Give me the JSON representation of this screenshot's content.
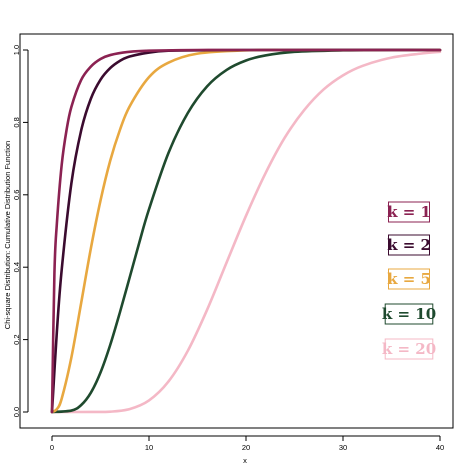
{
  "chart_data": {
    "type": "line",
    "xlabel": "x",
    "ylabel": "Chi-square Distribution: Cumulative Distribution Function",
    "xlim": [
      0,
      40
    ],
    "ylim": [
      0,
      1
    ],
    "x_ticks": [
      "0",
      "10",
      "20",
      "30",
      "40"
    ],
    "y_ticks": [
      "0.0",
      "0.2",
      "0.4",
      "0.6",
      "0.8",
      "1.0"
    ],
    "legend_placement": "right",
    "grid": false,
    "series": [
      {
        "name": "k = 1",
        "color": "#8b2252",
        "x": [
          0,
          0.25,
          0.5,
          1,
          1.5,
          2,
          3,
          4,
          5,
          6,
          8,
          10,
          15,
          20
        ],
        "y": [
          0,
          0.383,
          0.52,
          0.683,
          0.779,
          0.843,
          0.917,
          0.954,
          0.975,
          0.986,
          0.995,
          0.998,
          1.0,
          1.0
        ]
      },
      {
        "name": "k = 2",
        "color": "#3b0b2f",
        "x": [
          0,
          0.5,
          1,
          2,
          3,
          4,
          5,
          6,
          7,
          8,
          10,
          12,
          15,
          20
        ],
        "y": [
          0,
          0.221,
          0.393,
          0.632,
          0.777,
          0.865,
          0.918,
          0.95,
          0.97,
          0.982,
          0.993,
          0.998,
          0.999,
          1.0
        ]
      },
      {
        "name": "k = 5",
        "color": "#e8a840",
        "x": [
          0,
          0.5,
          1,
          2,
          3,
          4,
          5,
          6,
          7,
          8,
          10,
          12,
          15,
          20,
          25,
          30
        ],
        "y": [
          0,
          0.008,
          0.037,
          0.151,
          0.3,
          0.451,
          0.584,
          0.694,
          0.779,
          0.844,
          0.925,
          0.965,
          0.99,
          0.999,
          1.0,
          1.0
        ]
      },
      {
        "name": "k = 10",
        "color": "#1f4a2e",
        "x": [
          0,
          2,
          3,
          4,
          5,
          6,
          7,
          8,
          9,
          10,
          12,
          14,
          16,
          18,
          20,
          22,
          25,
          30,
          35,
          40
        ],
        "y": [
          0,
          0.004,
          0.019,
          0.053,
          0.109,
          0.185,
          0.275,
          0.371,
          0.468,
          0.56,
          0.715,
          0.826,
          0.9,
          0.945,
          0.971,
          0.985,
          0.995,
          0.999,
          1.0,
          1.0
        ]
      },
      {
        "name": "k = 20",
        "color": "#f4b8c6",
        "x": [
          0,
          4,
          6,
          8,
          10,
          12,
          14,
          16,
          18,
          20,
          22,
          24,
          26,
          28,
          30,
          32,
          35,
          38,
          40
        ],
        "y": [
          0,
          0.0001,
          0.0009,
          0.0081,
          0.032,
          0.084,
          0.169,
          0.283,
          0.413,
          0.542,
          0.659,
          0.758,
          0.834,
          0.891,
          0.93,
          0.956,
          0.979,
          0.99,
          0.995
        ]
      }
    ]
  }
}
